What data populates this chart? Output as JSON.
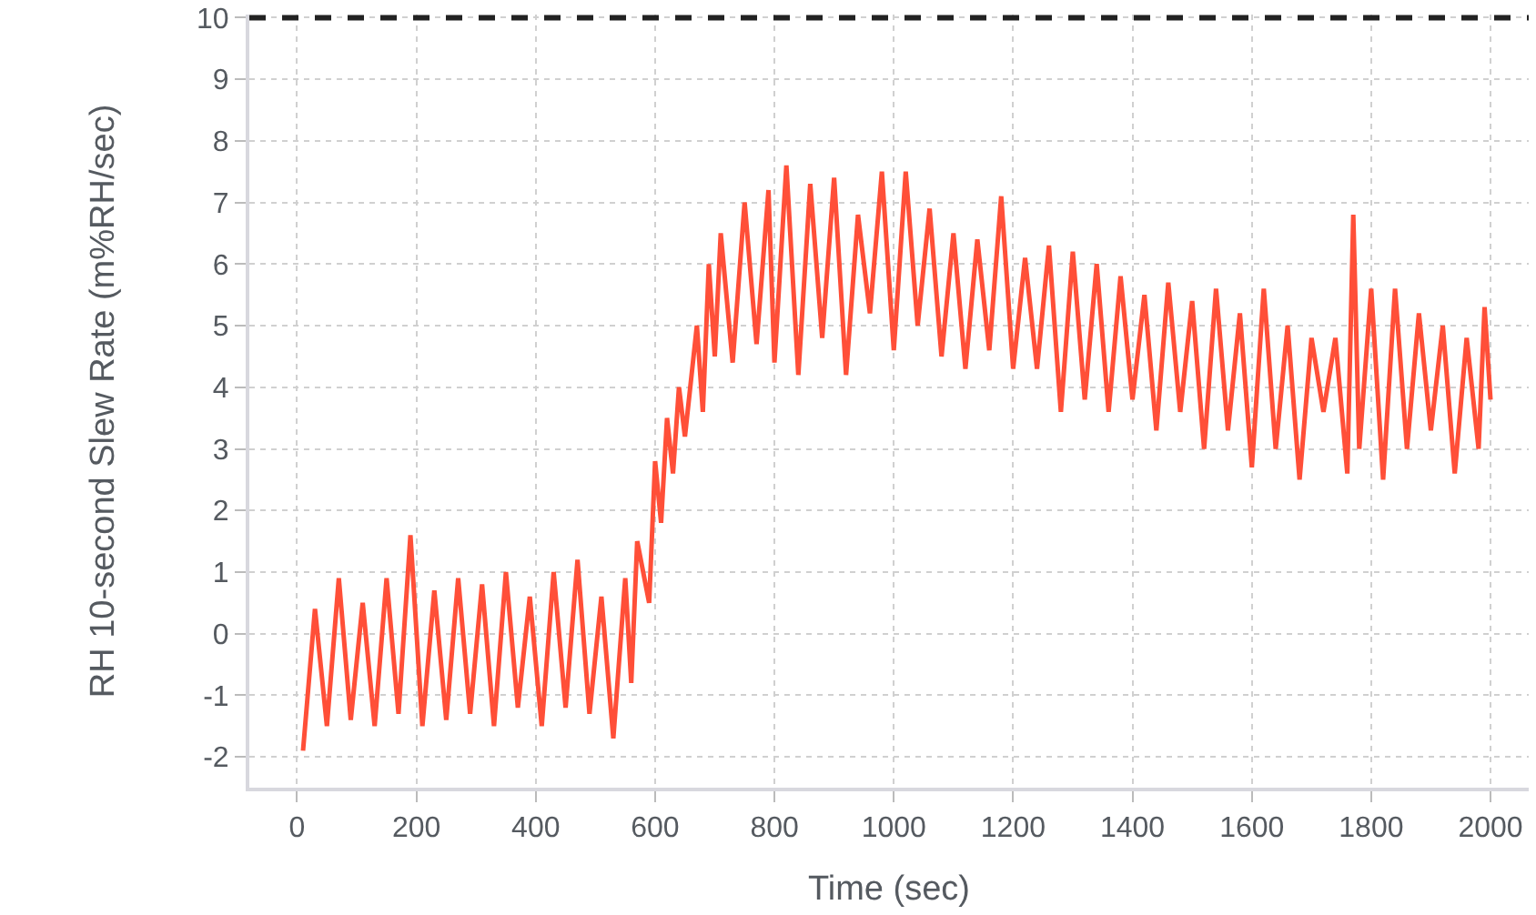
{
  "chart_data": {
    "type": "line",
    "xlabel": "Time (sec)",
    "ylabel": "RH 10-second Slew Rate (m%RH/sec)",
    "xlim": [
      -80,
      2064
    ],
    "xticks": [
      0,
      200,
      400,
      600,
      800,
      1000,
      1200,
      1400,
      1600,
      1800,
      2000
    ],
    "ylim": [
      -2.5,
      10.05
    ],
    "yticks": [
      -2,
      -1,
      0,
      1,
      2,
      3,
      4,
      5,
      6,
      7,
      8,
      9,
      10
    ],
    "grid": true,
    "marker": "none",
    "line_style": "solid",
    "ref_lines": [
      {
        "axis": "y",
        "value": 10,
        "color": "#222222",
        "line_style": "dashed"
      }
    ],
    "series": [
      {
        "color": "#ff4f38",
        "x": [
          10,
          30,
          50,
          70,
          90,
          110,
          130,
          150,
          170,
          190,
          210,
          230,
          250,
          270,
          290,
          310,
          330,
          350,
          370,
          390,
          410,
          430,
          450,
          470,
          490,
          510,
          530,
          550,
          560,
          570,
          590,
          600,
          610,
          620,
          630,
          640,
          650,
          670,
          680,
          690,
          700,
          710,
          730,
          750,
          770,
          790,
          800,
          820,
          840,
          860,
          880,
          900,
          920,
          940,
          960,
          980,
          1000,
          1020,
          1040,
          1060,
          1080,
          1100,
          1120,
          1140,
          1160,
          1180,
          1200,
          1220,
          1240,
          1260,
          1280,
          1300,
          1320,
          1340,
          1360,
          1380,
          1400,
          1420,
          1440,
          1460,
          1480,
          1500,
          1520,
          1540,
          1560,
          1580,
          1600,
          1620,
          1640,
          1660,
          1680,
          1700,
          1720,
          1740,
          1760,
          1770,
          1780,
          1800,
          1820,
          1840,
          1860,
          1880,
          1900,
          1920,
          1940,
          1960,
          1980,
          1990,
          2000
        ],
        "values": [
          -1.9,
          0.4,
          -1.5,
          0.9,
          -1.4,
          0.5,
          -1.5,
          0.9,
          -1.3,
          1.6,
          -1.5,
          0.7,
          -1.4,
          0.9,
          -1.3,
          0.8,
          -1.5,
          1.0,
          -1.2,
          0.6,
          -1.5,
          1.0,
          -1.2,
          1.2,
          -1.3,
          0.6,
          -1.7,
          0.9,
          -0.8,
          1.5,
          0.5,
          2.8,
          1.8,
          3.5,
          2.6,
          4.0,
          3.2,
          5.0,
          3.6,
          6.0,
          4.5,
          6.5,
          4.4,
          7.0,
          4.7,
          7.2,
          4.4,
          7.6,
          4.2,
          7.3,
          4.8,
          7.4,
          4.2,
          6.8,
          5.2,
          7.5,
          4.6,
          7.5,
          5.0,
          6.9,
          4.5,
          6.5,
          4.3,
          6.4,
          4.6,
          7.1,
          4.3,
          6.1,
          4.3,
          6.3,
          3.6,
          6.2,
          3.8,
          6.0,
          3.6,
          5.8,
          3.8,
          5.5,
          3.3,
          5.7,
          3.6,
          5.4,
          3.0,
          5.6,
          3.3,
          5.2,
          2.7,
          5.6,
          3.0,
          5.0,
          2.5,
          4.8,
          3.6,
          4.8,
          2.6,
          6.8,
          3.0,
          5.6,
          2.5,
          5.6,
          3.0,
          5.2,
          3.3,
          5.0,
          2.6,
          4.8,
          3.0,
          5.3,
          3.8
        ]
      }
    ]
  }
}
